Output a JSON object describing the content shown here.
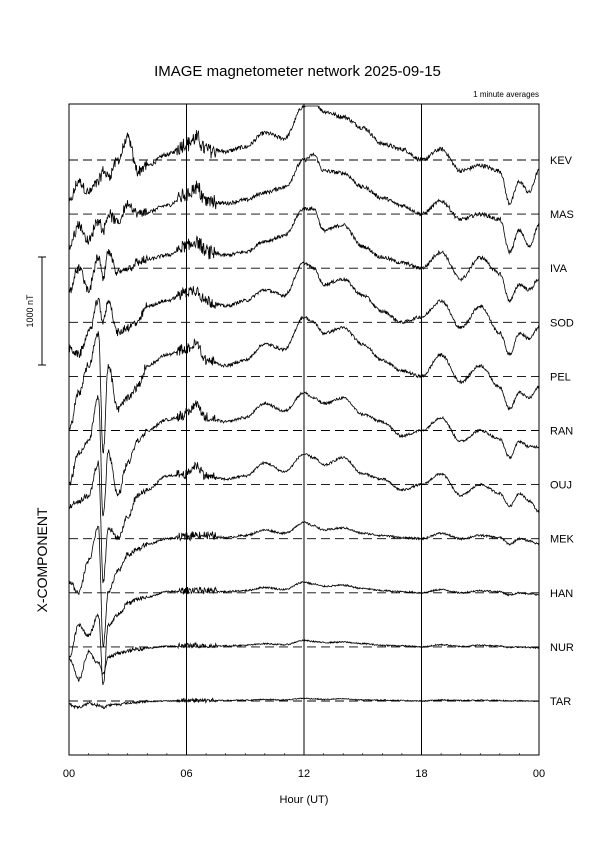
{
  "chart_data": {
    "type": "line",
    "title": "IMAGE magnetometer network 2025-09-15",
    "subtitle": "1 minute averages",
    "xlabel": "Hour (UT)",
    "component_label": "X-COMPONENT",
    "scale_bar_label": "1000 nT",
    "scale_bar_value_nT": 1000,
    "x_ticks": [
      "00",
      "06",
      "12",
      "18",
      "00"
    ],
    "x_tick_hours": [
      0,
      6,
      12,
      18,
      24
    ],
    "xlim_hours": [
      0,
      24
    ],
    "vertical_grid_hours": [
      6,
      12,
      18
    ],
    "stations": [
      "KEV",
      "MAS",
      "IVA",
      "SOD",
      "PEL",
      "RAN",
      "OUJ",
      "MEK",
      "HAN",
      "NUR",
      "TAR"
    ],
    "series_hours": [
      0,
      0.5,
      1,
      1.5,
      1.75,
      2,
      2.5,
      3,
      3.5,
      4,
      5,
      6,
      6.5,
      7,
      8,
      9,
      10,
      11,
      12,
      12.5,
      13,
      14,
      15,
      16,
      17,
      18,
      19,
      20,
      21,
      22,
      22.5,
      23,
      23.5,
      24
    ],
    "series": [
      {
        "name": "KEV",
        "values": [
          -400,
          -200,
          -300,
          -200,
          -100,
          -150,
          0,
          200,
          -100,
          -50,
          50,
          150,
          200,
          100,
          80,
          120,
          250,
          200,
          500,
          550,
          450,
          400,
          300,
          150,
          100,
          0,
          100,
          -100,
          -50,
          -100,
          -400,
          -200,
          -300,
          -100
        ]
      },
      {
        "name": "MAS",
        "values": [
          -300,
          -100,
          -250,
          -50,
          -150,
          0,
          -80,
          100,
          0,
          20,
          80,
          180,
          250,
          120,
          100,
          130,
          200,
          250,
          500,
          550,
          400,
          380,
          250,
          150,
          80,
          0,
          120,
          -50,
          0,
          -50,
          -350,
          -150,
          -300,
          -100
        ]
      },
      {
        "name": "IVA",
        "values": [
          -200,
          0,
          -200,
          100,
          -100,
          150,
          -50,
          0,
          50,
          80,
          120,
          200,
          250,
          150,
          120,
          150,
          250,
          300,
          550,
          550,
          350,
          400,
          200,
          100,
          50,
          0,
          150,
          -100,
          100,
          -50,
          -300,
          -150,
          -200,
          -100
        ]
      },
      {
        "name": "SOD",
        "values": [
          -250,
          -300,
          -100,
          200,
          0,
          200,
          -100,
          -50,
          0,
          150,
          200,
          280,
          300,
          200,
          150,
          200,
          300,
          250,
          550,
          500,
          350,
          400,
          250,
          100,
          0,
          50,
          200,
          -50,
          150,
          -100,
          -300,
          -100,
          -150,
          -50
        ]
      },
      {
        "name": "PEL",
        "values": [
          -500,
          -150,
          100,
          400,
          -700,
          100,
          -300,
          -200,
          -100,
          100,
          200,
          250,
          300,
          150,
          100,
          150,
          300,
          250,
          550,
          500,
          400,
          450,
          300,
          150,
          50,
          0,
          200,
          -50,
          100,
          -100,
          -300,
          -150,
          -200,
          -100
        ]
      },
      {
        "name": "RAN",
        "values": [
          -500,
          -200,
          -100,
          300,
          -800,
          -200,
          -600,
          -300,
          -100,
          0,
          100,
          150,
          250,
          120,
          80,
          120,
          250,
          180,
          350,
          300,
          250,
          300,
          150,
          80,
          -50,
          0,
          120,
          -100,
          0,
          -80,
          -250,
          -100,
          -150,
          -150
        ]
      },
      {
        "name": "OUJ",
        "values": [
          -200,
          -150,
          -100,
          200,
          -900,
          -400,
          -500,
          -300,
          -100,
          -50,
          80,
          100,
          180,
          80,
          50,
          80,
          200,
          120,
          280,
          250,
          180,
          250,
          100,
          50,
          -50,
          0,
          100,
          -100,
          0,
          -80,
          -200,
          -80,
          -150,
          -250
        ]
      },
      {
        "name": "MEK",
        "values": [
          -400,
          -500,
          -200,
          100,
          -1000,
          -500,
          -300,
          -150,
          -100,
          -50,
          0,
          20,
          40,
          30,
          10,
          30,
          80,
          50,
          150,
          120,
          80,
          100,
          50,
          30,
          10,
          0,
          50,
          0,
          30,
          10,
          -50,
          0,
          -20,
          -50
        ]
      },
      {
        "name": "HAN",
        "values": [
          -600,
          -300,
          -400,
          -200,
          -850,
          -300,
          -200,
          -100,
          -60,
          -40,
          10,
          20,
          30,
          20,
          10,
          20,
          50,
          30,
          100,
          80,
          60,
          70,
          40,
          20,
          10,
          0,
          30,
          0,
          20,
          10,
          -20,
          0,
          -10,
          -20
        ]
      },
      {
        "name": "NUR",
        "values": [
          -100,
          -300,
          -50,
          -150,
          -250,
          -100,
          -60,
          -40,
          -20,
          -10,
          5,
          10,
          15,
          10,
          10,
          15,
          30,
          20,
          60,
          50,
          40,
          45,
          30,
          15,
          10,
          0,
          20,
          5,
          15,
          10,
          -5,
          0,
          -5,
          -10
        ]
      },
      {
        "name": "TAR",
        "values": [
          -30,
          -60,
          -20,
          -40,
          -60,
          -40,
          -30,
          -20,
          -10,
          -5,
          0,
          5,
          8,
          5,
          5,
          8,
          15,
          10,
          25,
          20,
          15,
          20,
          10,
          8,
          5,
          0,
          10,
          5,
          8,
          5,
          0,
          2,
          0,
          -5
        ]
      }
    ]
  }
}
